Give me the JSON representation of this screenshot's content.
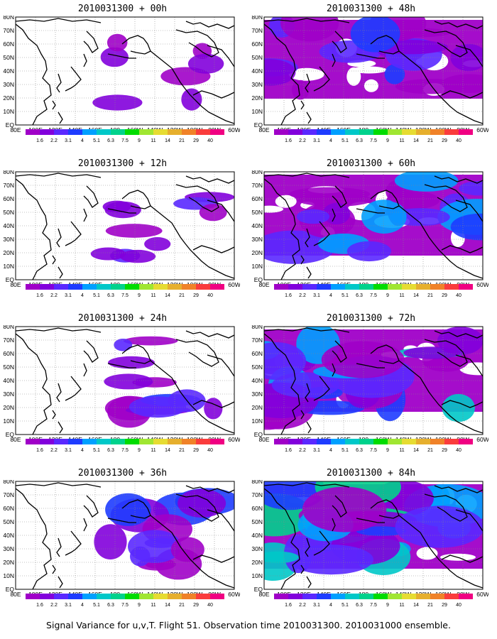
{
  "panels": [
    {
      "title": "2010031300 + 00h",
      "lead": "00h",
      "intensity": 0.15
    },
    {
      "title": "2010031300 + 48h",
      "lead": "48h",
      "intensity": 0.55
    },
    {
      "title": "2010031300 + 12h",
      "lead": "12h",
      "intensity": 0.25
    },
    {
      "title": "2010031300 + 60h",
      "lead": "60h",
      "intensity": 0.7
    },
    {
      "title": "2010031300 + 24h",
      "lead": "24h",
      "intensity": 0.35
    },
    {
      "title": "2010031300 + 72h",
      "lead": "72h",
      "intensity": 0.8
    },
    {
      "title": "2010031300 + 36h",
      "lead": "36h",
      "intensity": 0.45
    },
    {
      "title": "2010031300 + 84h",
      "lead": "84h",
      "intensity": 0.95
    }
  ],
  "y_ticks": [
    "EQ",
    "10N",
    "20N",
    "30N",
    "40N",
    "50N",
    "60N",
    "70N",
    "80N"
  ],
  "x_ticks": [
    "80E",
    "100E",
    "120E",
    "140E",
    "160E",
    "180",
    "160W",
    "140W",
    "120W",
    "100W",
    "80W",
    "60W"
  ],
  "colorbar": {
    "labels": [
      "1.6",
      "2.2",
      "3.1",
      "4",
      "5.1",
      "6.3",
      "7.5",
      "9",
      "11",
      "14",
      "21",
      "29",
      "40"
    ],
    "colors": [
      "#a000c8",
      "#8200dc",
      "#5a28ff",
      "#1e3cff",
      "#00a0ff",
      "#00c8c8",
      "#00d28c",
      "#00dc00",
      "#a0e632",
      "#e6dc32",
      "#e6af2d",
      "#f08228",
      "#fa3c3c",
      "#f00082"
    ]
  },
  "caption": "Signal Variance for u,v,T. Flight 51. Observation time 2010031300. 2010031000 ensemble."
}
